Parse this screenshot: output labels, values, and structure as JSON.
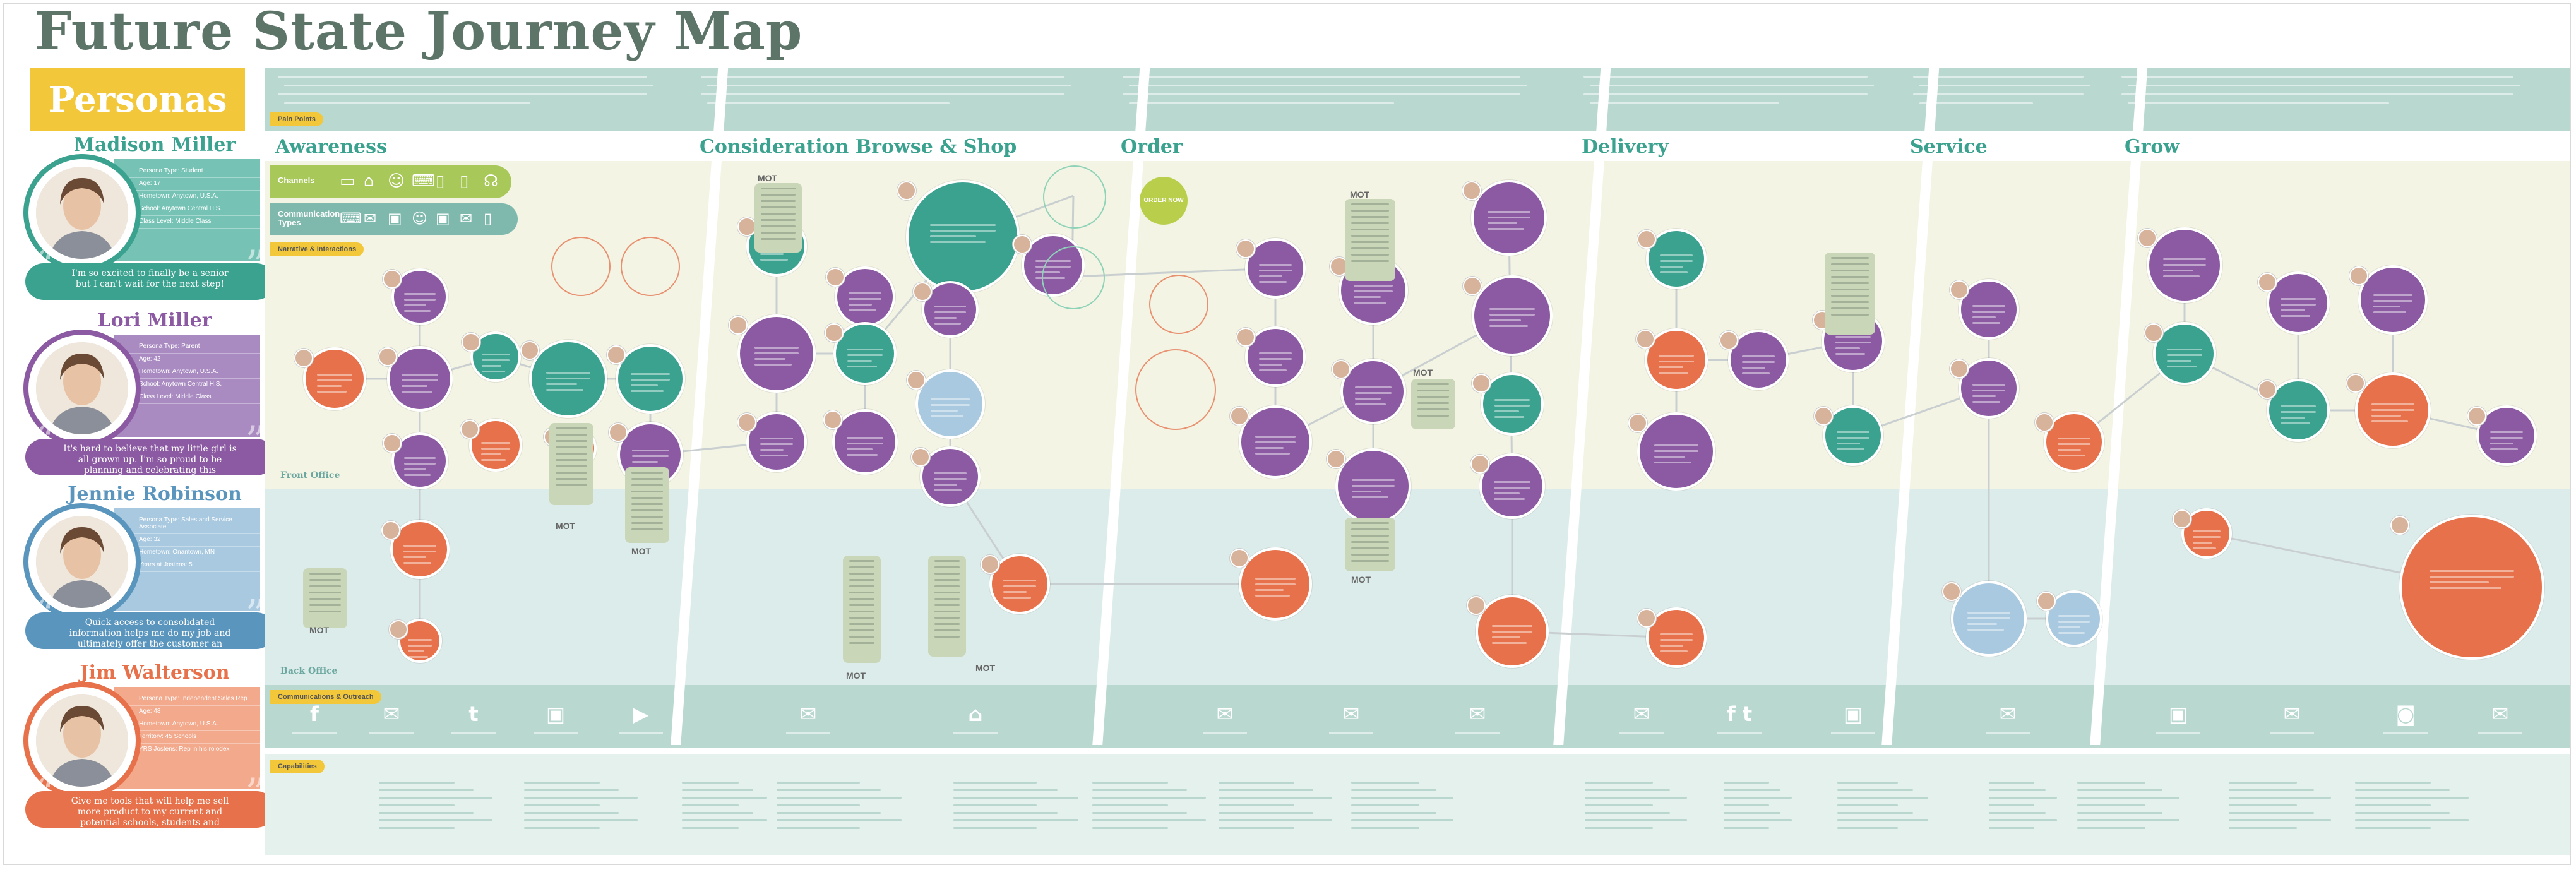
{
  "title": "Future State Journey Map",
  "personas_title": "Personas",
  "personas": [
    {
      "name": "Madison Miller",
      "color": "#3aa28f",
      "card": "#76c3b6",
      "lines": [
        "Persona Type: Student",
        "Age: 17",
        "Hometown: Anytown, U.S.A.",
        "School: Anytown Central H.S.",
        "Class Level: Middle Class"
      ],
      "quote": "I'm so excited to finally be a senior but I can't wait for the next step!"
    },
    {
      "name": "Lori Miller",
      "color": "#8b5aa2",
      "card": "#a98bc2",
      "lines": [
        "Persona Type: Parent",
        "Age: 42",
        "Hometown: Anytown, U.S.A.",
        "School: Anytown Central H.S.",
        "Class Level: Middle Class"
      ],
      "quote": "It's hard to believe that my little girl is all grown up. I'm so proud to be planning and celebrating this significant milestone."
    },
    {
      "name": "Jennie Robinson",
      "color": "#5a95bd",
      "card": "#a9c9e0",
      "lines": [
        "Persona Type: Sales and Service Associate",
        "Age: 32",
        "Hometown: Onantown, MN",
        "Years at Jostens: 5"
      ],
      "quote": "Quick access to consolidated information helps me do my job and ultimately offer the customer an optimal experience."
    },
    {
      "name": "Jim Walterson",
      "color": "#e7714a",
      "card": "#f2a98c",
      "lines": [
        "Persona Type: Independent Sales Rep",
        "Age: 48",
        "Hometown: Anytown, U.S.A.",
        "Territory: 45 Schools",
        "YRS Jostens: Rep in his rolodex"
      ],
      "quote": "Give me tools that will help me sell more product to my current and potential schools, students and parents with lower overhead."
    }
  ],
  "stages": [
    "Awareness",
    "Consideration Browse & Shop",
    "Order",
    "Delivery",
    "Service",
    "Grow"
  ],
  "tags": {
    "pain_points": "Pain Points",
    "narrative": "Narrative & Interactions",
    "communications": "Communications & Outreach",
    "capabilities": "Capabilities"
  },
  "channels_label": "Channels",
  "contact_types_label": "Communication Types",
  "lanes": {
    "front": "Front Office",
    "back": "Back Office"
  },
  "mot": "MOT",
  "order_now": "ORDER NOW",
  "channel_icons": [
    "monitor-icon",
    "building-icon",
    "people-icon",
    "laptop-icon",
    "tablet-icon",
    "phone-icon",
    "headset-icon"
  ],
  "comm_icons": [
    "facebook-icon",
    "mail-icon",
    "twitter-icon",
    "chat-icon",
    "video-icon",
    "mail-icon",
    "store-icon",
    "mail-icon",
    "mail-icon",
    "mail-icon",
    "mail-icon",
    "facebook-twitter-icon",
    "chat-icon",
    "mail-icon",
    "chat-icon",
    "mail-icon",
    "instagram-icon",
    "mail-icon"
  ],
  "colors": {
    "teal": "#3aa28f",
    "purple": "#8b5aa2",
    "orange": "#e7714a",
    "lightblue": "#a9c9e0",
    "yellow": "#f2c73a"
  }
}
